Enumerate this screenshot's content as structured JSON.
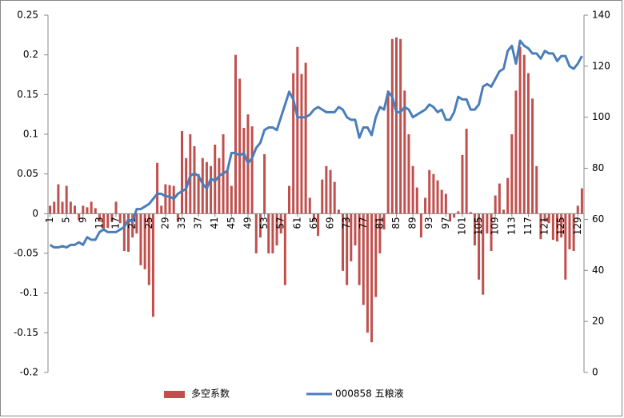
{
  "chart_data": {
    "type": "bar",
    "categories": [
      "1",
      null,
      null,
      null,
      "5",
      null,
      null,
      null,
      "9",
      null,
      null,
      null,
      "13",
      null,
      null,
      null,
      "17",
      null,
      null,
      null,
      "21",
      null,
      null,
      null,
      "25",
      null,
      null,
      null,
      "29",
      null,
      null,
      null,
      "33",
      null,
      null,
      null,
      "37",
      null,
      null,
      null,
      "41",
      null,
      null,
      null,
      "45",
      null,
      null,
      null,
      "49",
      null,
      null,
      null,
      "53",
      null,
      null,
      null,
      "57",
      null,
      null,
      null,
      "61",
      null,
      null,
      null,
      "65",
      null,
      null,
      null,
      "69",
      null,
      null,
      null,
      "73",
      null,
      null,
      null,
      "77",
      null,
      null,
      null,
      "81",
      null,
      null,
      null,
      "85",
      null,
      null,
      null,
      "89",
      null,
      null,
      null,
      "93",
      null,
      null,
      null,
      "97",
      null,
      null,
      null,
      "101",
      null,
      null,
      null,
      "105",
      null,
      null,
      null,
      "109",
      null,
      null,
      null,
      "113",
      null,
      null,
      null,
      "117",
      null,
      null,
      null,
      "121",
      null,
      null,
      null,
      "125",
      null,
      null,
      null,
      "129",
      null
    ],
    "series": [
      {
        "name": "多空系数",
        "type": "bar",
        "color": "#c0504d",
        "values": [
          0.01,
          0.015,
          0.037,
          0.015,
          0.035,
          0.015,
          0.01,
          -0.008,
          0.01,
          0.008,
          0.015,
          0.007,
          -0.01,
          -0.02,
          -0.018,
          -0.01,
          0.015,
          -0.012,
          -0.047,
          -0.048,
          -0.03,
          -0.025,
          -0.065,
          -0.07,
          -0.09,
          -0.13,
          0.064,
          0.01,
          0.037,
          0.036,
          0.035,
          -0.01,
          0.104,
          0.07,
          0.1,
          0.085,
          0.05,
          0.07,
          0.065,
          0.06,
          0.087,
          0.07,
          0.1,
          0.055,
          0.035,
          0.2,
          0.17,
          0.108,
          0.125,
          0.11,
          -0.05,
          -0.03,
          0.075,
          -0.05,
          -0.05,
          -0.04,
          -0.025,
          -0.09,
          0.035,
          0.177,
          0.21,
          0.176,
          0.19,
          0.02,
          -0.01,
          -0.028,
          0.043,
          0.06,
          0.055,
          0.04,
          0.005,
          -0.072,
          -0.09,
          -0.06,
          -0.04,
          -0.09,
          -0.115,
          -0.15,
          -0.162,
          -0.105,
          -0.05,
          -0.02,
          0.155,
          0.22,
          0.222,
          0.22,
          0.155,
          0.1,
          0.06,
          0.033,
          -0.03,
          0.02,
          0.055,
          0.05,
          0.042,
          0.03,
          0.025,
          -0.01,
          -0.005,
          0.003,
          0.074,
          0.107,
          0.002,
          -0.04,
          -0.083,
          -0.102,
          -0.025,
          -0.047,
          0.023,
          0.038,
          0.005,
          0.045,
          0.1,
          0.155,
          0.21,
          0.2,
          0.177,
          0.145,
          0.06,
          -0.032,
          -0.01,
          -0.012,
          -0.033,
          -0.035,
          -0.03,
          -0.083,
          -0.045,
          -0.047,
          0.01,
          0.032
        ]
      },
      {
        "name": "000858 五粮液",
        "type": "line",
        "axis": "y2",
        "color": "#4a7ebb",
        "values": [
          50,
          49,
          49,
          49.5,
          49,
          50,
          50,
          51,
          50,
          53,
          52,
          52,
          55,
          56,
          55,
          55,
          55,
          56,
          57,
          60,
          59,
          64,
          64,
          65,
          66,
          68,
          70,
          70,
          69,
          69,
          68,
          70,
          71,
          72,
          77,
          78,
          77,
          74,
          72,
          76,
          75,
          77,
          78,
          79,
          86,
          86,
          85,
          86,
          82,
          84,
          88,
          90,
          95,
          96,
          96,
          95,
          100,
          105,
          110,
          107,
          100,
          100,
          100,
          101,
          103,
          104,
          103,
          102,
          102,
          102,
          104,
          103,
          100,
          99,
          99,
          92,
          96,
          96,
          93,
          100,
          104,
          103,
          110,
          108,
          102,
          102,
          104,
          103,
          100,
          101,
          102,
          103,
          105,
          104,
          102,
          103,
          99,
          99,
          102,
          108,
          107,
          107,
          103,
          103,
          105,
          112,
          113,
          112,
          115,
          118,
          119,
          126,
          128,
          121,
          130,
          128,
          127,
          125,
          125,
          123,
          126,
          125,
          125,
          122,
          124,
          124,
          120,
          119,
          121,
          124
        ]
      }
    ],
    "ylim": [
      -0.2,
      0.25
    ],
    "yticks": [
      -0.2,
      -0.15,
      -0.1,
      -0.05,
      0,
      0.05,
      0.1,
      0.15,
      0.2,
      0.25
    ],
    "y2lim": [
      0,
      140
    ],
    "y2ticks": [
      0,
      20,
      40,
      60,
      80,
      100,
      120,
      140
    ],
    "grid": false,
    "legend": "bottom"
  }
}
